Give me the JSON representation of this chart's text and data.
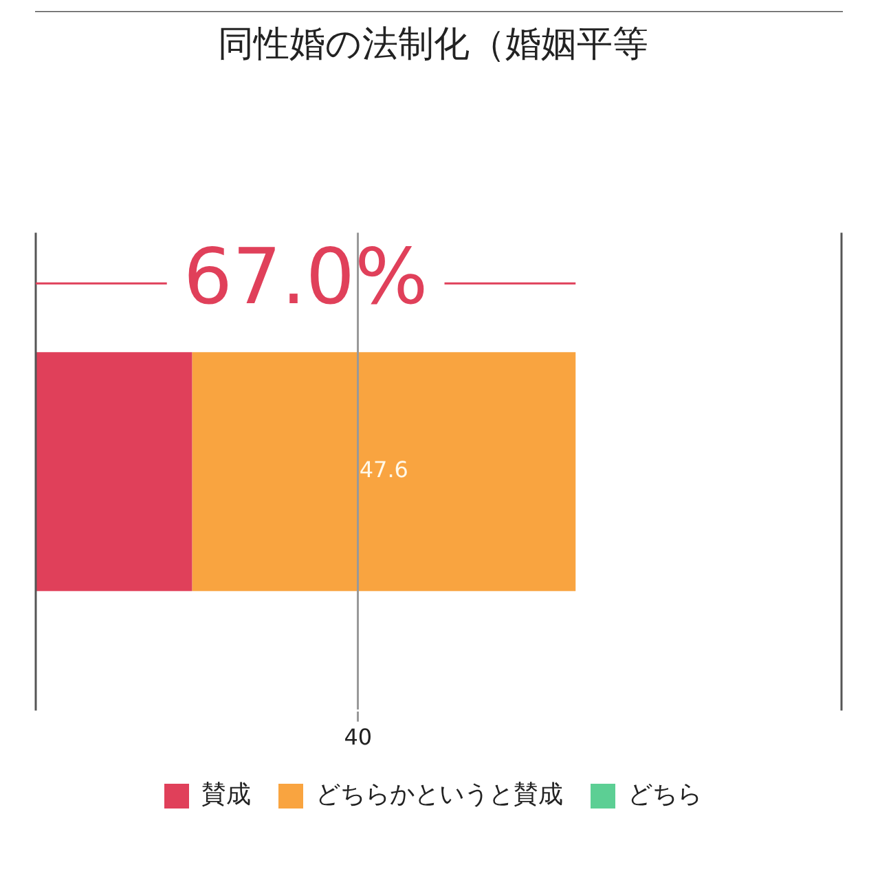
{
  "chart_data": {
    "type": "bar",
    "orientation": "horizontal",
    "stacked": true,
    "title": "同性婚の法制化（婚姻平等",
    "categories": [
      null
    ],
    "series": [
      {
        "name": "賛成",
        "color": "#e0405a",
        "values": [
          19.4
        ],
        "value_labels": [
          null
        ]
      },
      {
        "name": "どちらかというと賛成",
        "color": "#f9a440",
        "values": [
          47.6
        ],
        "value_labels": [
          "47.6"
        ]
      },
      {
        "name": "どちら",
        "color": "#5ccf94",
        "values": [
          null
        ]
      }
    ],
    "xlim": [
      0,
      100
    ],
    "xticks": [
      40
    ],
    "tick_labels": "x",
    "grid": "x",
    "legend": "bottom",
    "annotations": [
      "67.0%"
    ]
  }
}
